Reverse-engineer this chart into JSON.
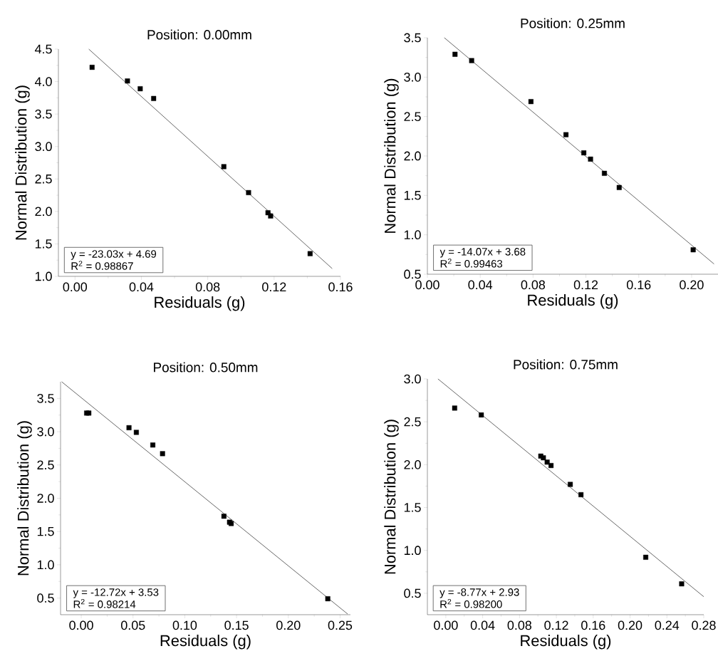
{
  "chart_data": [
    {
      "type": "scatter",
      "title": "Position: 0.00mm",
      "xlabel": "Residuals (g)",
      "ylabel": "Normal Distribution (g)",
      "xlim": [
        -0.01,
        0.16
      ],
      "ylim": [
        1.0,
        4.5
      ],
      "xticks": [
        {
          "value": 0,
          "label": "0.00"
        },
        {
          "value": 0.04,
          "label": "0.04"
        },
        {
          "value": 0.08,
          "label": "0.08"
        },
        {
          "value": 0.12,
          "label": "0.12"
        },
        {
          "value": 0.16,
          "label": "0.16"
        }
      ],
      "yticks": [
        {
          "value": 1.0,
          "label": "1.0"
        },
        1.5,
        {
          "value": 2.0,
          "label": "2.0"
        },
        2.5,
        {
          "value": 3.0,
          "label": "3.0"
        },
        3.5,
        {
          "value": 4.0,
          "label": "4.0"
        },
        4.5
      ],
      "annotations": [
        "y = -23.03x + 4.69",
        "R$^{2}$ = 0.98867"
      ],
      "series": [
        {
          "color": "#000000",
          "marker": "square",
          "x": [
            0.0103,
            0.0316,
            0.0393,
            0.0474,
            0.0897,
            0.1046,
            0.1163,
            0.1179,
            0.1417
          ],
          "values": [
            4.22,
            4.01,
            3.89,
            3.74,
            2.69,
            2.29,
            1.98,
            1.93,
            1.35
          ]
        },
        {
          "type": "line",
          "color": "#000000",
          "x": [
            0.0083,
            0.155
          ],
          "values": [
            4.5,
            1.12
          ]
        }
      ]
    },
    {
      "type": "scatter",
      "title": "Position: 0.25mm",
      "xlabel": "Residuals (g)",
      "ylabel": "Normal Distribution (g)",
      "xlim": [
        0,
        0.22
      ],
      "ylim": [
        0.5,
        3.5
      ],
      "xticks": [
        {
          "value": 0,
          "label": "0.00"
        },
        {
          "value": 0.04,
          "label": "0.04"
        },
        {
          "value": 0.08,
          "label": "0.08"
        },
        {
          "value": 0.12,
          "label": "0.12"
        },
        {
          "value": 0.16,
          "label": "0.16"
        },
        {
          "value": 0.2,
          "label": "0.20"
        }
      ],
      "yticks": [
        0.5,
        {
          "value": 1.0,
          "label": "1.0"
        },
        1.5,
        {
          "value": 2.0,
          "label": "2.0"
        },
        2.5,
        {
          "value": 3.0,
          "label": "3.0"
        },
        3.5
      ],
      "annotations": [
        "y = -14.07x + 3.68",
        "R$^{2}$ = 0.99463"
      ],
      "series": [
        {
          "color": "#000000",
          "marker": "square",
          "x": [
            0.0209,
            0.0335,
            0.0784,
            0.1049,
            0.1184,
            0.1235,
            0.134,
            0.1452,
            0.2012
          ],
          "values": [
            3.29,
            3.21,
            2.69,
            2.27,
            2.04,
            1.96,
            1.78,
            1.6,
            0.81
          ]
        },
        {
          "type": "line",
          "color": "#000000",
          "x": [
            0.0128,
            0.217
          ],
          "values": [
            3.5,
            0.63
          ]
        }
      ]
    },
    {
      "type": "scatter",
      "title": "Position: 0.50mm",
      "xlabel": "Residuals (g)",
      "ylabel": "Normal Distribution (g)",
      "xlim": [
        -0.02,
        0.26
      ],
      "ylim": [
        0.25,
        3.75
      ],
      "xticks": [
        {
          "value": 0,
          "label": "0.00"
        },
        {
          "value": 0.05,
          "label": "0.05"
        },
        {
          "value": 0.1,
          "label": "0.10"
        },
        {
          "value": 0.15,
          "label": "0.15"
        },
        {
          "value": 0.2,
          "label": "0.20"
        },
        {
          "value": 0.25,
          "label": "0.25"
        }
      ],
      "yticks": [
        0.5,
        {
          "value": 1.0,
          "label": "1.0"
        },
        1.5,
        {
          "value": 2.0,
          "label": "2.0"
        },
        2.5,
        {
          "value": 3.0,
          "label": "3.0"
        },
        3.5
      ],
      "annotations": [
        "y = -12.72x + 3.53",
        "R$^{2}$ = 0.98214"
      ],
      "series": [
        {
          "color": "#000000",
          "marker": "square",
          "x": [
            0.0052,
            0.0073,
            0.0461,
            0.0532,
            0.0691,
            0.0785,
            0.1378,
            0.1432,
            0.1448,
            0.2381
          ],
          "values": [
            3.28,
            3.28,
            3.06,
            2.99,
            2.8,
            2.67,
            1.73,
            1.64,
            1.62,
            0.49
          ]
        },
        {
          "type": "line",
          "color": "#000000",
          "x": [
            -0.0189,
            0.2573
          ],
          "values": [
            3.75,
            0.26
          ]
        }
      ]
    },
    {
      "type": "scatter",
      "title": "Position: 0.75mm",
      "xlabel": "Residuals (g)",
      "ylabel": "Normal Distribution (g)",
      "xlim": [
        -0.02,
        0.28
      ],
      "ylim": [
        0.25,
        3.0
      ],
      "xticks": [
        {
          "value": 0,
          "label": "0.00"
        },
        {
          "value": 0.04,
          "label": "0.04"
        },
        {
          "value": 0.08,
          "label": "0.08"
        },
        {
          "value": 0.12,
          "label": "0.12"
        },
        {
          "value": 0.16,
          "label": "0.16"
        },
        {
          "value": 0.2,
          "label": "0.20"
        },
        {
          "value": 0.24,
          "label": "0.24"
        },
        {
          "value": 0.28,
          "label": "0.28"
        }
      ],
      "yticks": [
        0.5,
        {
          "value": 1.0,
          "label": "1.0"
        },
        1.5,
        {
          "value": 2.0,
          "label": "2.0"
        },
        2.5,
        {
          "value": 3.0,
          "label": "3.0"
        }
      ],
      "annotations": [
        "y = -8.77x + 2.93",
        "R$^{2}$ = 0.98200"
      ],
      "series": [
        {
          "color": "#000000",
          "marker": "square",
          "x": [
            0.0096,
            0.0385,
            0.1031,
            0.1059,
            0.11,
            0.1142,
            0.1351,
            0.1467,
            0.217,
            0.256
          ],
          "values": [
            2.66,
            2.58,
            2.1,
            2.08,
            2.03,
            1.99,
            1.77,
            1.65,
            0.92,
            0.61
          ]
        },
        {
          "type": "line",
          "color": "#000000",
          "x": [
            -0.0085,
            0.28
          ],
          "values": [
            3.0,
            0.46
          ]
        }
      ]
    }
  ]
}
